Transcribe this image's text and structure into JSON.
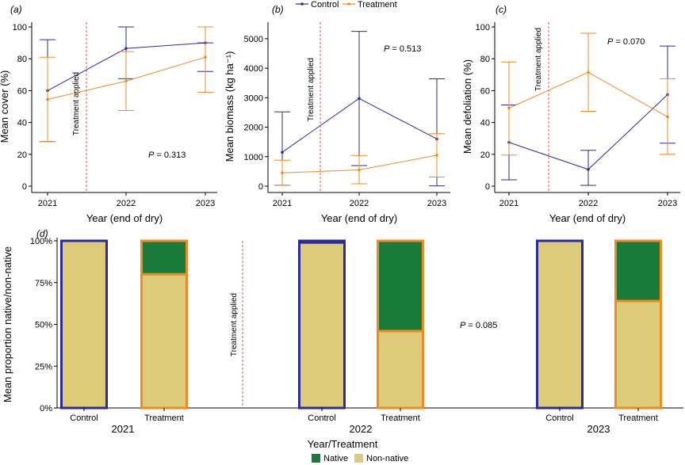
{
  "legend_top": {
    "control": "Control",
    "treatment": "Treatment"
  },
  "legend_bottom": {
    "native": "Native",
    "non_native": "Non-native"
  },
  "colors": {
    "control": "#2b2b9e",
    "treatment": "#f08a24",
    "native": "#1a7a3a",
    "non_native": "#dccb7a",
    "vline": "#e05050"
  },
  "chart_data": [
    {
      "type": "line",
      "panel": "(a)",
      "title": "",
      "xlabel": "Year (end of dry)",
      "ylabel": "Mean cover (%)",
      "x": [
        "2021",
        "2022",
        "2023"
      ],
      "ylim": [
        0,
        100
      ],
      "yticks": [
        "0",
        "20",
        "40",
        "60",
        "80",
        "100"
      ],
      "p_value": "P = 0.313",
      "annotation": "Treatment applied",
      "series": [
        {
          "name": "Control",
          "values": [
            60,
            86.5,
            90
          ],
          "lower": [
            28,
            67.5,
            72
          ],
          "upper": [
            92,
            100,
            90
          ]
        },
        {
          "name": "Treatment",
          "values": [
            54.5,
            66,
            81
          ],
          "lower": [
            28,
            47.5,
            59
          ],
          "upper": [
            81,
            84.5,
            100
          ]
        }
      ]
    },
    {
      "type": "line",
      "panel": "(b)",
      "title": "",
      "xlabel": "Year (end of dry)",
      "ylabel": "Mean biomass (kg ha⁻¹)",
      "x": [
        "2021",
        "2022",
        "2023"
      ],
      "ylim": [
        0,
        5400
      ],
      "yticks": [
        "0",
        "1000",
        "2000",
        "3000",
        "4000",
        "5000"
      ],
      "p_value": "P = 0.513",
      "annotation": "Treatment applied",
      "series": [
        {
          "name": "Control",
          "values": [
            1150,
            2975,
            1600
          ],
          "lower": [
            30,
            700,
            10
          ],
          "upper": [
            2520,
            5250,
            3640
          ]
        },
        {
          "name": "Treatment",
          "values": [
            450,
            550,
            1050
          ],
          "lower": [
            30,
            80,
            310
          ],
          "upper": [
            880,
            1040,
            1780
          ]
        }
      ]
    },
    {
      "type": "line",
      "panel": "(c)",
      "title": "",
      "xlabel": "Year (end of dry)",
      "ylabel": "Mean defoliation (%)",
      "x": [
        "2021",
        "2022",
        "2023"
      ],
      "ylim": [
        0,
        100
      ],
      "yticks": [
        "0",
        "20",
        "40",
        "60",
        "80",
        "100"
      ],
      "p_value": "P = 0.070",
      "annotation": "Treatment applied",
      "series": [
        {
          "name": "Control",
          "values": [
            27.5,
            10.5,
            57.5
          ],
          "lower": [
            4,
            0.5,
            27
          ],
          "upper": [
            51,
            22.5,
            88
          ]
        },
        {
          "name": "Treatment",
          "values": [
            49,
            71.5,
            43.5
          ],
          "lower": [
            19.5,
            47,
            20
          ],
          "upper": [
            78,
            96,
            67.5
          ]
        }
      ]
    },
    {
      "type": "bar",
      "stacked": true,
      "panel": "(d)",
      "title": "",
      "xlabel": "Year/Treatment",
      "ylabel": "Mean proportion native/non-native",
      "ylim": [
        0,
        1
      ],
      "yticks": [
        "0%",
        "25%",
        "50%",
        "75%",
        "100%"
      ],
      "p_value": "P = 0.085",
      "annotation": "Treatment applied",
      "groups": [
        "2021",
        "2022",
        "2023"
      ],
      "categories": [
        "Control",
        "Treatment"
      ],
      "series": [
        {
          "name": "Non-native",
          "values": [
            [
              1.0,
              0.8
            ],
            [
              0.99,
              0.46
            ],
            [
              1.0,
              0.64
            ]
          ]
        },
        {
          "name": "Native",
          "values": [
            [
              0.0,
              0.2
            ],
            [
              0.01,
              0.54
            ],
            [
              0.0,
              0.36
            ]
          ]
        }
      ]
    }
  ]
}
